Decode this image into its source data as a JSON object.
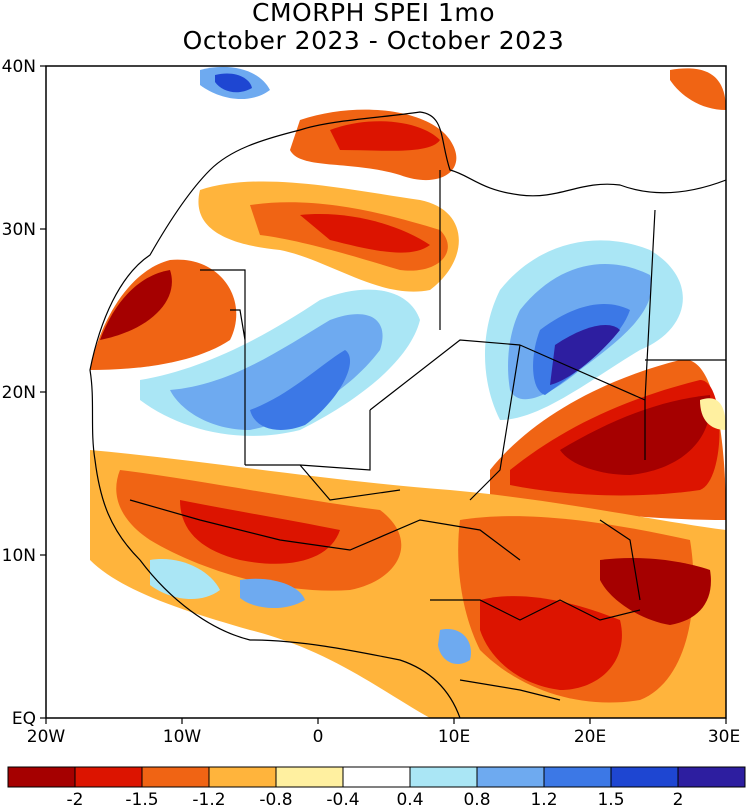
{
  "title": "CMORPH SPEI 1mo",
  "subtitle": "October 2023 - October 2023",
  "map": {
    "lat_labels": [
      "40N",
      "30N",
      "20N",
      "10N",
      "EQ"
    ],
    "lon_labels": [
      "20W",
      "10W",
      "0",
      "10E",
      "20E",
      "30E"
    ],
    "background_color": "#ffffff",
    "border_color": "#000000"
  },
  "legend": {
    "colors": [
      "#a50000",
      "#dc1400",
      "#f06414",
      "#ffb43c",
      "#fff0a0",
      "#ffffff",
      "#aae6f5",
      "#6eaaf0",
      "#3c78e6",
      "#1e46d2",
      "#2d1ea0"
    ],
    "labels": [
      "-2",
      "-1.5",
      "-1.2",
      "-0.8",
      "-0.4",
      "0.4",
      "0.8",
      "1.2",
      "1.5",
      "2"
    ]
  }
}
